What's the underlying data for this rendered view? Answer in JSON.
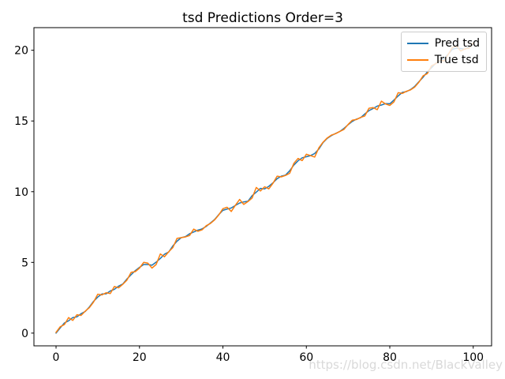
{
  "figure": {
    "background": "#ffffff",
    "spine_color": "#000000",
    "text_color": "#000000"
  },
  "watermark": {
    "text": "https://blog.csdn.net/BlackValley",
    "color": "#d9d9d9"
  },
  "legend": {
    "border_color": "#cccccc"
  },
  "chart_data": {
    "type": "line",
    "title": "tsd Predictions Order=3",
    "xlabel": "",
    "ylabel": "",
    "grid": false,
    "legend_position": "upper right",
    "xlim": [
      -5.3,
      104.4
    ],
    "ylim": [
      -0.9,
      21.6
    ],
    "xticks": [
      0,
      20,
      40,
      60,
      80,
      100
    ],
    "yticks": [
      0,
      5,
      10,
      15,
      20
    ],
    "x": [
      0,
      1,
      2,
      3,
      4,
      5,
      6,
      7,
      8,
      9,
      10,
      11,
      12,
      13,
      14,
      15,
      16,
      17,
      18,
      19,
      20,
      21,
      22,
      23,
      24,
      25,
      26,
      27,
      28,
      29,
      30,
      31,
      32,
      33,
      34,
      35,
      36,
      37,
      38,
      39,
      40,
      41,
      42,
      43,
      44,
      45,
      46,
      47,
      48,
      49,
      50,
      51,
      52,
      53,
      54,
      55,
      56,
      57,
      58,
      59,
      60,
      61,
      62,
      63,
      64,
      65,
      66,
      67,
      68,
      69,
      70,
      71,
      72,
      73,
      74,
      75,
      76,
      77,
      78,
      79,
      80,
      81,
      82,
      83,
      84,
      85,
      86,
      87,
      88,
      89,
      90,
      91,
      92,
      93,
      94,
      95,
      96,
      97,
      98,
      99,
      100
    ],
    "series": [
      {
        "name": "Pred tsd",
        "color": "#1f77b4",
        "values": [
          0.0,
          0.37,
          0.72,
          0.87,
          1.1,
          1.15,
          1.37,
          1.53,
          1.85,
          2.25,
          2.55,
          2.77,
          2.78,
          2.98,
          3.1,
          3.32,
          3.47,
          3.83,
          4.13,
          4.42,
          4.65,
          4.85,
          4.85,
          4.8,
          5.02,
          5.28,
          5.58,
          5.73,
          6.17,
          6.5,
          6.75,
          6.82,
          7.02,
          7.15,
          7.28,
          7.37,
          7.55,
          7.78,
          8.03,
          8.38,
          8.68,
          8.77,
          8.85,
          9.03,
          9.2,
          9.28,
          9.32,
          9.72,
          9.97,
          10.23,
          10.2,
          10.38,
          10.63,
          10.92,
          11.1,
          11.17,
          11.48,
          11.88,
          12.18,
          12.4,
          12.47,
          12.55,
          12.7,
          13.02,
          13.47,
          13.77,
          13.97,
          14.12,
          14.25,
          14.47,
          14.73,
          14.97,
          15.13,
          15.23,
          15.5,
          15.73,
          15.88,
          16.05,
          16.13,
          16.23,
          16.22,
          16.48,
          16.77,
          17.02,
          17.08,
          17.23,
          17.45,
          17.78,
          18.1,
          18.48,
          18.77,
          19.08,
          19.2,
          19.42,
          19.72,
          20.07,
          20.15,
          20.12,
          20.07,
          20.25,
          20.45
        ]
      },
      {
        "name": "True tsd",
        "color": "#ff7f0e",
        "values": [
          0.05,
          0.45,
          0.6,
          1.1,
          0.9,
          1.3,
          1.25,
          1.55,
          1.8,
          2.2,
          2.75,
          2.7,
          2.85,
          2.8,
          3.3,
          3.2,
          3.45,
          3.75,
          4.3,
          4.35,
          4.6,
          5.0,
          4.95,
          4.6,
          4.85,
          5.6,
          5.4,
          5.75,
          6.05,
          6.7,
          6.75,
          6.8,
          6.9,
          7.35,
          7.2,
          7.3,
          7.6,
          7.75,
          8.0,
          8.35,
          8.8,
          8.9,
          8.6,
          9.05,
          9.45,
          9.1,
          9.3,
          9.55,
          10.3,
          10.05,
          10.35,
          10.2,
          10.6,
          11.1,
          11.05,
          11.15,
          11.3,
          12.0,
          12.35,
          12.2,
          12.65,
          12.55,
          12.45,
          13.1,
          13.5,
          13.8,
          14.0,
          14.1,
          14.25,
          14.4,
          14.75,
          15.05,
          15.1,
          15.25,
          15.35,
          15.9,
          15.95,
          15.8,
          16.4,
          16.2,
          16.1,
          16.35,
          17.0,
          16.95,
          17.1,
          17.2,
          17.4,
          17.75,
          18.2,
          18.35,
          18.9,
          19.05,
          19.3,
          19.25,
          19.7,
          20.2,
          20.3,
          19.95,
          20.1,
          20.15,
          20.5
        ]
      }
    ]
  }
}
